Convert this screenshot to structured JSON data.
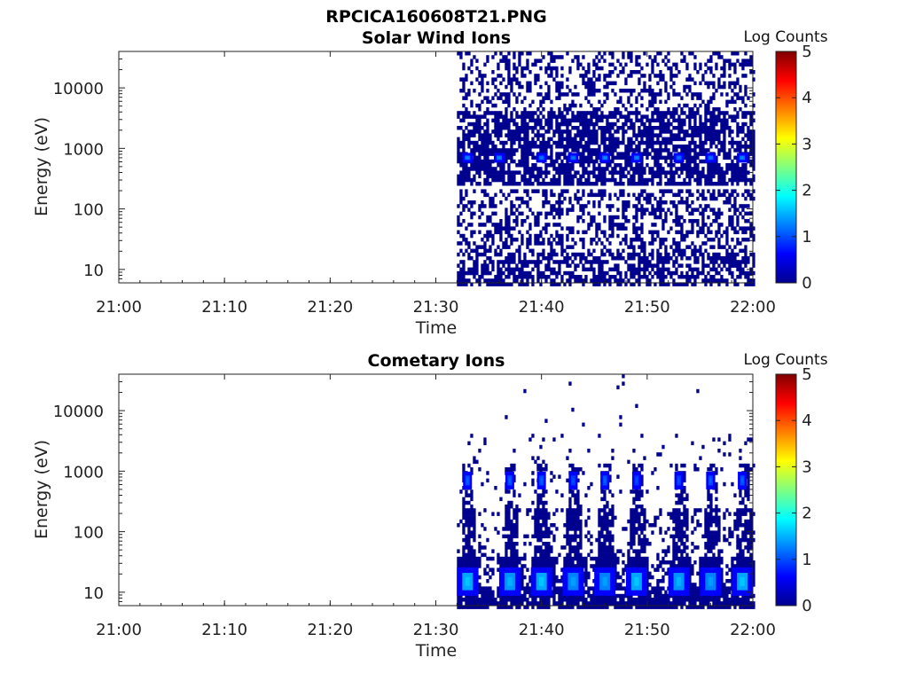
{
  "figure_title": "RPCICA160608T21.PNG",
  "chart_data": [
    {
      "type": "heatmap",
      "title": "Solar Wind Ions",
      "xlabel": "Time",
      "ylabel": "Energy (eV)",
      "x_range": [
        "21:00",
        "22:00"
      ],
      "x_ticks": [
        "21:00",
        "21:10",
        "21:20",
        "21:30",
        "21:40",
        "21:50",
        "22:00"
      ],
      "y_scale": "log",
      "y_range": [
        6,
        40000
      ],
      "y_ticks": [
        "10",
        "100",
        "1000",
        "10000"
      ],
      "data_start": "21:32",
      "data_end": "22:00",
      "colorbar": {
        "label": "Log Counts",
        "range": [
          0,
          5
        ],
        "ticks": [
          "0",
          "1",
          "2",
          "3",
          "4",
          "5"
        ]
      },
      "peaks": [
        {
          "time": "21:33",
          "energy_eV": 700,
          "log_counts": 1.3
        },
        {
          "time": "21:36",
          "energy_eV": 700,
          "log_counts": 1.3
        },
        {
          "time": "21:40",
          "energy_eV": 700,
          "log_counts": 1.2
        },
        {
          "time": "21:43",
          "energy_eV": 700,
          "log_counts": 1.2
        },
        {
          "time": "21:46",
          "energy_eV": 700,
          "log_counts": 1.3
        },
        {
          "time": "21:49",
          "energy_eV": 700,
          "log_counts": 1.3
        },
        {
          "time": "21:53",
          "energy_eV": 700,
          "log_counts": 1.2
        },
        {
          "time": "21:56",
          "energy_eV": 700,
          "log_counts": 1.2
        },
        {
          "time": "21:59",
          "energy_eV": 700,
          "log_counts": 1.3
        }
      ]
    },
    {
      "type": "heatmap",
      "title": "Cometary Ions",
      "xlabel": "Time",
      "ylabel": "Energy (eV)",
      "x_range": [
        "21:00",
        "22:00"
      ],
      "x_ticks": [
        "21:00",
        "21:10",
        "21:20",
        "21:30",
        "21:40",
        "21:50",
        "22:00"
      ],
      "y_scale": "log",
      "y_range": [
        6,
        40000
      ],
      "y_ticks": [
        "10",
        "100",
        "1000",
        "10000"
      ],
      "data_start": "21:32",
      "data_end": "22:00",
      "colorbar": {
        "label": "Log Counts",
        "range": [
          0,
          5
        ],
        "ticks": [
          "0",
          "1",
          "2",
          "3",
          "4",
          "5"
        ]
      },
      "peaks": [
        {
          "time": "21:33",
          "energy_eV": 15,
          "log_counts": 1.6
        },
        {
          "time": "21:37",
          "energy_eV": 15,
          "log_counts": 1.5
        },
        {
          "time": "21:40",
          "energy_eV": 15,
          "log_counts": 1.6
        },
        {
          "time": "21:43",
          "energy_eV": 15,
          "log_counts": 1.4
        },
        {
          "time": "21:46",
          "energy_eV": 15,
          "log_counts": 1.4
        },
        {
          "time": "21:49",
          "energy_eV": 15,
          "log_counts": 1.6
        },
        {
          "time": "21:53",
          "energy_eV": 15,
          "log_counts": 1.5
        },
        {
          "time": "21:56",
          "energy_eV": 15,
          "log_counts": 1.4
        },
        {
          "time": "21:59",
          "energy_eV": 15,
          "log_counts": 1.6
        },
        {
          "time": "21:33",
          "energy_eV": 700,
          "log_counts": 1.1
        },
        {
          "time": "21:37",
          "energy_eV": 700,
          "log_counts": 1.1
        },
        {
          "time": "21:40",
          "energy_eV": 700,
          "log_counts": 1.1
        },
        {
          "time": "21:43",
          "energy_eV": 700,
          "log_counts": 1.0
        },
        {
          "time": "21:46",
          "energy_eV": 700,
          "log_counts": 1.1
        },
        {
          "time": "21:49",
          "energy_eV": 700,
          "log_counts": 1.0
        },
        {
          "time": "21:53",
          "energy_eV": 700,
          "log_counts": 1.0
        },
        {
          "time": "21:56",
          "energy_eV": 700,
          "log_counts": 1.1
        },
        {
          "time": "21:59",
          "energy_eV": 700,
          "log_counts": 1.1
        }
      ]
    }
  ]
}
